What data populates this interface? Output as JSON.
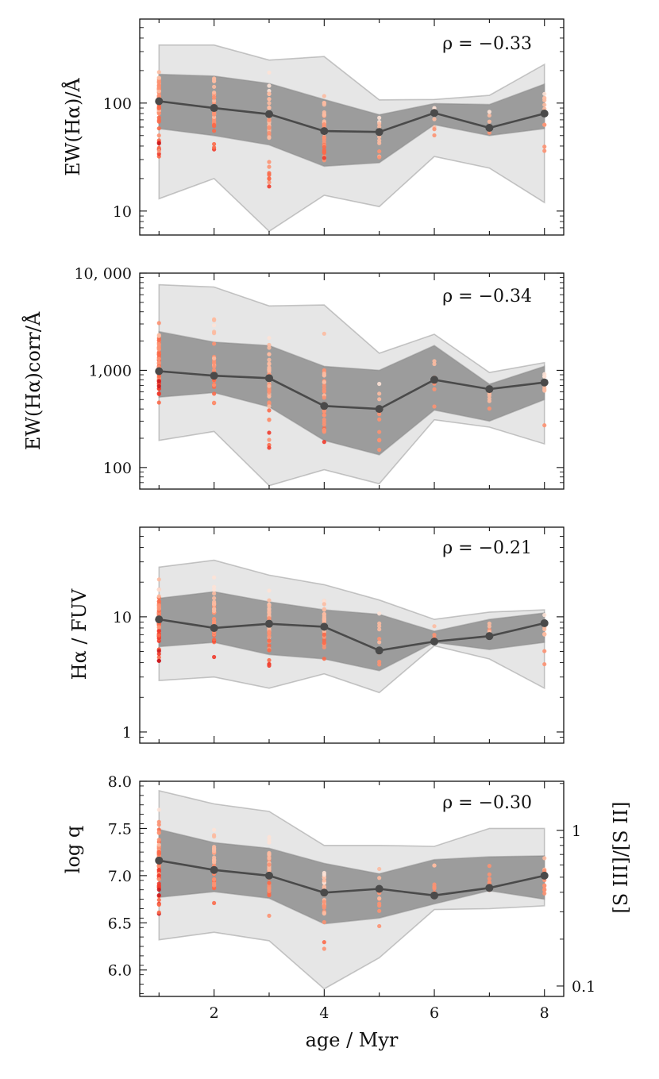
{
  "chart_data": {
    "type": "line",
    "shared_x": {
      "label": "age / Myr",
      "values": [
        1,
        2,
        3,
        4,
        5,
        6,
        7,
        8
      ],
      "ticks": [
        2,
        4,
        6,
        8
      ],
      "tick_labels": [
        "2",
        "4",
        "6",
        "8"
      ],
      "xlim": [
        0.65,
        8.35
      ]
    },
    "colors": {
      "median_line": "#4a4a4a",
      "inner_band": "#9c9c9c",
      "outer_band": "#e6e6e6",
      "band_edge": "#888888",
      "points": [
        "#fde2d6",
        "#fcbba1",
        "#fc9272",
        "#fb6a4a",
        "#ef3b2c",
        "#cb181d",
        "#99000d"
      ]
    },
    "panels": [
      {
        "id": "ew-ha",
        "ylabel": "EW(Hα)/Å",
        "scale": "log",
        "ylim": [
          6,
          600
        ],
        "yticks": [
          10,
          100
        ],
        "ytick_labels": [
          "10",
          "100"
        ],
        "annotation": "ρ = −0.33",
        "median": [
          104,
          90,
          79,
          55,
          54,
          81,
          59,
          80
        ],
        "p16": [
          58,
          50,
          41,
          26,
          28,
          63,
          50,
          58
        ],
        "p84": [
          185,
          178,
          152,
          108,
          78,
          99,
          97,
          150
        ],
        "p2": [
          13,
          20,
          6.5,
          14,
          11,
          32,
          25,
          12
        ],
        "p98": [
          345,
          345,
          250,
          270,
          107,
          108,
          118,
          228
        ]
      },
      {
        "id": "ew-ha-corr",
        "ylabel": "EW(Hα)corr/Å",
        "scale": "log",
        "ylim": [
          60,
          10000
        ],
        "yticks": [
          100,
          1000,
          10000
        ],
        "ytick_labels": [
          "100",
          "1,000",
          "10, 000"
        ],
        "annotation": "ρ = −0.34",
        "median": [
          980,
          880,
          830,
          430,
          400,
          800,
          640,
          750
        ],
        "p16": [
          530,
          590,
          420,
          190,
          135,
          390,
          300,
          500
        ],
        "p84": [
          2500,
          1950,
          1800,
          1100,
          1000,
          1800,
          720,
          1100
        ],
        "p2": [
          190,
          235,
          65,
          95,
          68,
          310,
          260,
          175
        ],
        "p98": [
          7600,
          7200,
          4600,
          4700,
          1500,
          2350,
          950,
          1200
        ]
      },
      {
        "id": "ha-fuv",
        "ylabel": "Hα / FUV",
        "scale": "log",
        "ylim": [
          0.8,
          60
        ],
        "yticks": [
          1,
          10
        ],
        "ytick_labels": [
          "1",
          "10"
        ],
        "annotation": "ρ = −0.21",
        "median": [
          9.5,
          8.0,
          8.7,
          8.2,
          5.1,
          6.1,
          6.8,
          8.8
        ],
        "p16": [
          5.5,
          6.0,
          4.7,
          4.3,
          3.4,
          6.0,
          5.2,
          6.0
        ],
        "p84": [
          14.5,
          16.5,
          13.5,
          11.5,
          10.5,
          7.5,
          9.5,
          10.8
        ],
        "p2": [
          2.8,
          3.0,
          2.4,
          3.2,
          2.2,
          5.6,
          4.3,
          2.4
        ],
        "p98": [
          27,
          31,
          23,
          19,
          14,
          9.5,
          11,
          11.5
        ]
      },
      {
        "id": "logq",
        "ylabel": "log q",
        "scale": "linear",
        "ylim": [
          5.72,
          8.0
        ],
        "yticks": [
          6.0,
          6.5,
          7.0,
          7.5,
          8.0
        ],
        "ytick_labels": [
          "6.0",
          "6.5",
          "7.0",
          "7.5",
          "8.0"
        ],
        "annotation": "ρ = −0.30",
        "right_axis": {
          "label": "[S III]/[S II]",
          "ticks": [
            0.1,
            1
          ],
          "tick_labels": [
            "0.1",
            "1"
          ]
        },
        "median": [
          7.16,
          7.06,
          7.0,
          6.82,
          6.86,
          6.79,
          6.87,
          7.0
        ],
        "p16": [
          6.77,
          6.83,
          6.76,
          6.49,
          6.55,
          6.7,
          6.84,
          6.75
        ],
        "p84": [
          7.49,
          7.35,
          7.29,
          7.13,
          7.02,
          7.17,
          7.2,
          7.21
        ],
        "p2": [
          6.32,
          6.4,
          6.31,
          5.8,
          6.13,
          6.64,
          6.65,
          6.68
        ],
        "p98": [
          7.9,
          7.76,
          7.68,
          7.32,
          7.32,
          7.31,
          7.5,
          7.5
        ]
      }
    ]
  }
}
